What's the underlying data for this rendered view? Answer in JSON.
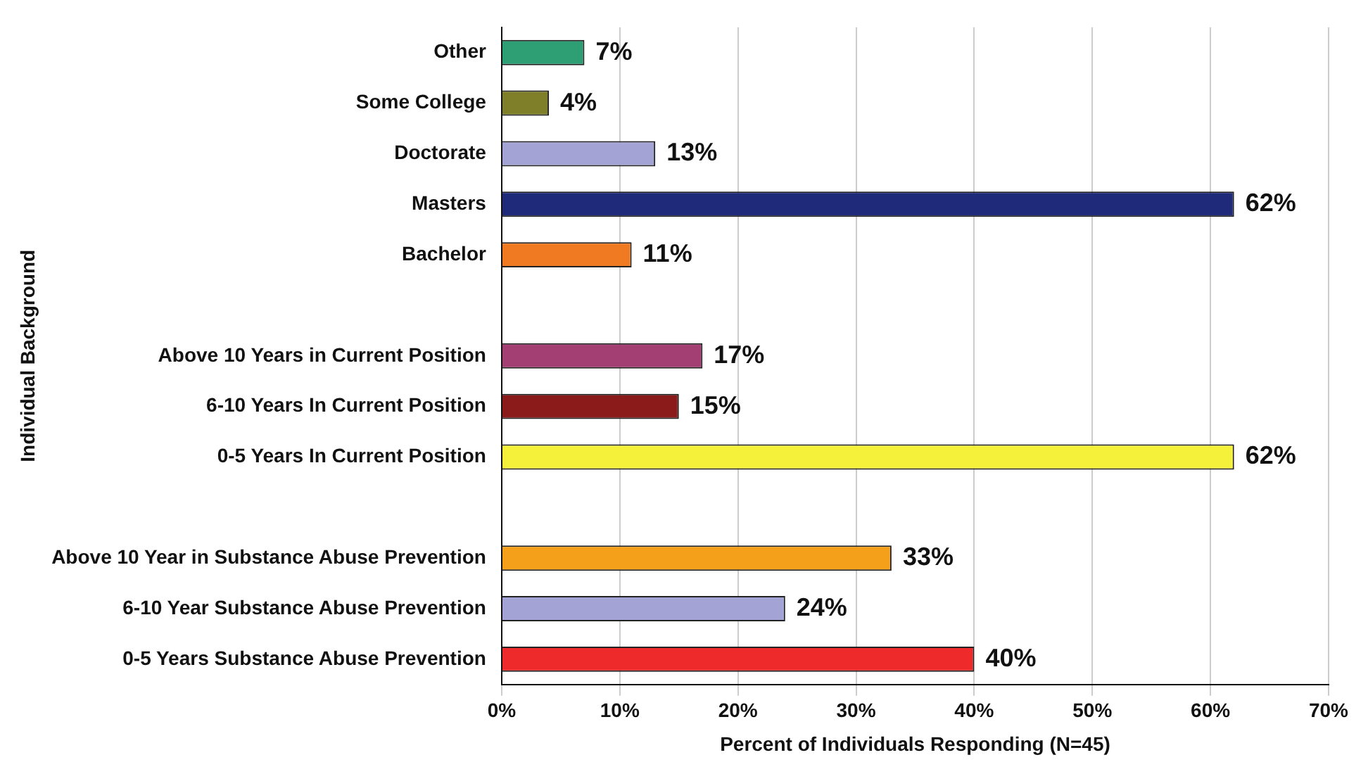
{
  "chart_data": {
    "type": "bar",
    "orientation": "horizontal",
    "xlabel": "Percent of Individuals Responding (N=45)",
    "ylabel": "Individual Background",
    "categories": [
      "Other",
      "Some College",
      "Doctorate",
      "Masters",
      "Bachelor",
      null,
      "Above 10 Years in Current Position",
      "6-10 Years In Current Position",
      "0-5 Years In Current Position",
      null,
      "Above 10 Year in Substance Abuse Prevention",
      "6-10 Year Substance Abuse Prevention",
      "0-5 Years Substance Abuse Prevention"
    ],
    "values": [
      7,
      4,
      13,
      62,
      11,
      null,
      17,
      15,
      62,
      null,
      33,
      24,
      40
    ],
    "colors": [
      "#2e9e74",
      "#7f7f2a",
      "#a3a3d6",
      "#1f2a7a",
      "#f07a22",
      "#ffffff",
      "#a33f72",
      "#8b1a1a",
      "#f5f03a",
      "#ffffff",
      "#f5a01a",
      "#a3a3d6",
      "#ee2a2a"
    ],
    "value_labels": [
      "7%",
      "4%",
      "13%",
      "62%",
      "11%",
      null,
      "17%",
      "15%",
      "62%",
      null,
      "33%",
      "24%",
      "40%"
    ],
    "xlim": [
      0,
      70
    ],
    "xticks": [
      {
        "value": 0,
        "label": "0%"
      },
      {
        "value": 10,
        "label": "10%"
      },
      {
        "value": 20,
        "label": "20%"
      },
      {
        "value": 30,
        "label": "30%"
      },
      {
        "value": 40,
        "label": "40%"
      },
      {
        "value": 50,
        "label": "50%"
      },
      {
        "value": 60,
        "label": "60%"
      },
      {
        "value": 70,
        "label": "70%"
      }
    ],
    "grid": "x",
    "legend": false
  }
}
